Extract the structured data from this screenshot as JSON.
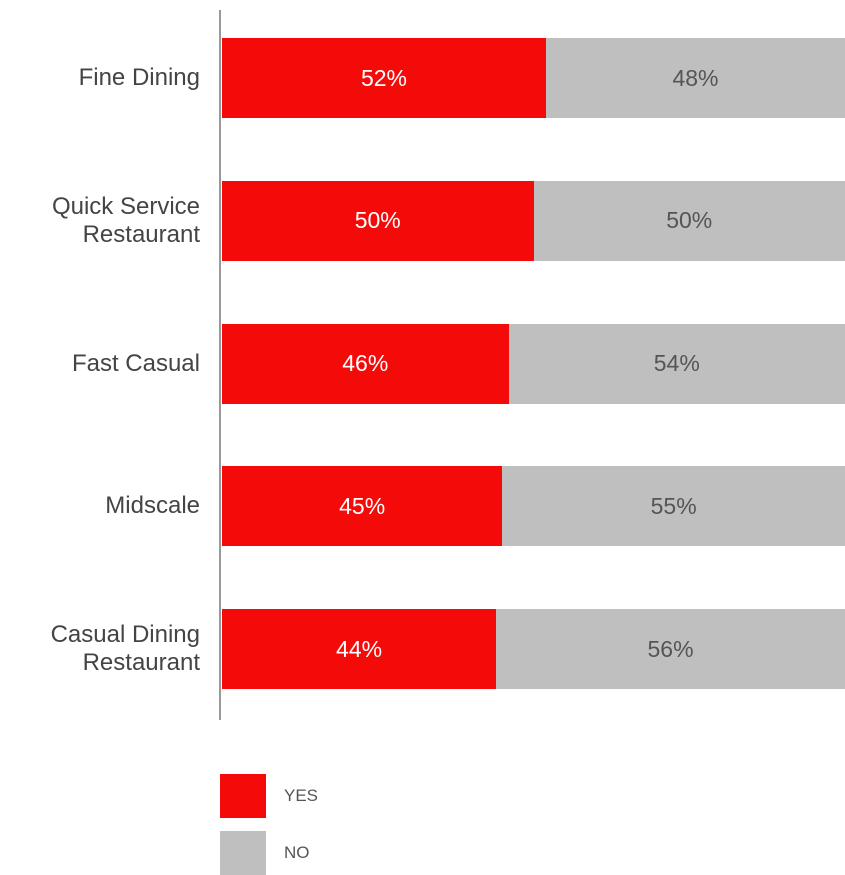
{
  "chart_data": {
    "type": "bar",
    "orientation": "horizontal",
    "stacked": true,
    "categories": [
      "Fine Dining",
      "Quick Service Restaurant",
      "Fast Casual",
      "Midscale",
      "Casual Dining Restaurant"
    ],
    "xlim": [
      0,
      100
    ],
    "series": [
      {
        "name": "YES",
        "color": "#f50a0a",
        "values": [
          52,
          50,
          46,
          45,
          44
        ],
        "value_labels": [
          "52%",
          "50%",
          "46%",
          "45%",
          "44%"
        ]
      },
      {
        "name": "NO",
        "color": "#bfbfbf",
        "values": [
          48,
          50,
          54,
          55,
          56
        ],
        "value_labels": [
          "48%",
          "50%",
          "54%",
          "55%",
          "56%"
        ]
      }
    ]
  }
}
